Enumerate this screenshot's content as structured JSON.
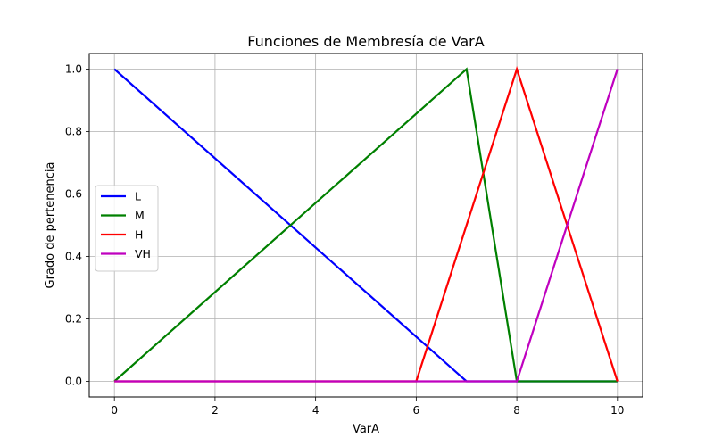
{
  "chart_data": {
    "type": "line",
    "title": "Funciones de Membresía de VarA",
    "xlabel": "VarA",
    "ylabel": "Grado de pertenencia",
    "xlim": [
      -0.5,
      10.5
    ],
    "ylim": [
      -0.05,
      1.05
    ],
    "xticks": [
      0,
      2,
      4,
      6,
      8,
      10
    ],
    "xtick_labels": [
      "0",
      "2",
      "4",
      "6",
      "8",
      "10"
    ],
    "yticks": [
      0.0,
      0.2,
      0.4,
      0.6,
      0.8,
      1.0
    ],
    "ytick_labels": [
      "0.0",
      "0.2",
      "0.4",
      "0.6",
      "0.8",
      "1.0"
    ],
    "grid": true,
    "legend_position": "center-left",
    "series": [
      {
        "name": "L",
        "color": "#0000ff",
        "x": [
          0,
          7,
          8,
          10
        ],
        "y": [
          1,
          0,
          0,
          0
        ]
      },
      {
        "name": "M",
        "color": "#008000",
        "x": [
          0,
          7,
          8,
          10
        ],
        "y": [
          0,
          1,
          0,
          0
        ]
      },
      {
        "name": "H",
        "color": "#ff0000",
        "x": [
          0,
          6,
          8,
          10
        ],
        "y": [
          0,
          0,
          1,
          0
        ]
      },
      {
        "name": "VH",
        "color": "#bf00bf",
        "x": [
          0,
          8,
          10
        ],
        "y": [
          0,
          0,
          1
        ]
      }
    ]
  }
}
